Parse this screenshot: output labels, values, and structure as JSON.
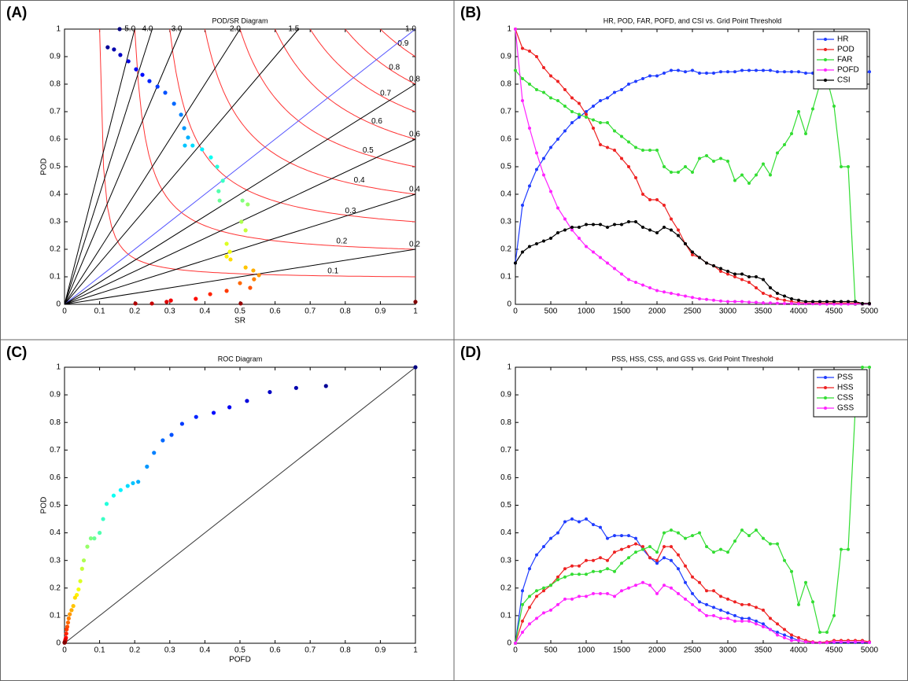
{
  "chart_data": [
    {
      "type": "scatter",
      "panel_label": "(A)",
      "title": "POD/SR Diagram",
      "xlabel": "SR",
      "ylabel": "POD",
      "xlim": [
        0,
        1
      ],
      "ylim": [
        0,
        1
      ],
      "xticks": [
        0,
        0.1,
        0.2,
        0.3,
        0.4,
        0.5,
        0.6,
        0.7,
        0.8,
        0.9,
        1
      ],
      "yticks": [
        0,
        0.1,
        0.2,
        0.3,
        0.4,
        0.5,
        0.6,
        0.7,
        0.8,
        0.9,
        1
      ],
      "colormap": "jet",
      "x": [
        0.157,
        0.123,
        0.141,
        0.159,
        0.182,
        0.204,
        0.222,
        0.242,
        0.265,
        0.287,
        0.312,
        0.332,
        0.341,
        0.352,
        0.343,
        0.365,
        0.392,
        0.417,
        0.435,
        0.451,
        0.439,
        0.442,
        0.507,
        0.522,
        0.504,
        0.516,
        0.462,
        0.471,
        0.462,
        0.473,
        0.516,
        0.538,
        0.554,
        0.54,
        0.5,
        0.529,
        0.462,
        0.415,
        0.374,
        0.303,
        0.291,
        0.249,
        0.202,
        0.502,
        1.0
      ],
      "values": [
        1.0,
        0.934,
        0.926,
        0.906,
        0.883,
        0.854,
        0.834,
        0.811,
        0.791,
        0.769,
        0.729,
        0.689,
        0.64,
        0.606,
        0.577,
        0.577,
        0.563,
        0.534,
        0.5,
        0.449,
        0.411,
        0.377,
        0.377,
        0.363,
        0.3,
        0.269,
        0.22,
        0.191,
        0.174,
        0.163,
        0.134,
        0.123,
        0.106,
        0.091,
        0.077,
        0.06,
        0.049,
        0.037,
        0.02,
        0.014,
        0.009,
        0.003,
        0.003,
        0.003,
        0.009
      ],
      "bias_lines": [
        {
          "value": 5,
          "label": "5.0"
        },
        {
          "value": 4,
          "label": "4.0"
        },
        {
          "value": 3,
          "label": "3.0"
        },
        {
          "value": 2,
          "label": "2.0"
        },
        1.5,
        {
          "value": 1,
          "label": "1.0"
        },
        0.8,
        0.6,
        0.4,
        0.2
      ],
      "bias_color": "#000000",
      "unit_bias_color": "#5555ff",
      "csi_lines": [
        0.1,
        0.2,
        0.3,
        0.4,
        0.5,
        0.6,
        0.7,
        0.8,
        0.9
      ],
      "csi_color": "#ff3333"
    },
    {
      "type": "line",
      "panel_label": "(B)",
      "title": "HR, POD, FAR, POFD, and CSI vs. Grid Point Threshold",
      "xlim": [
        0,
        5000
      ],
      "ylim": [
        0,
        1
      ],
      "xticks": [
        0,
        500,
        1000,
        1500,
        2000,
        2500,
        3000,
        3500,
        4000,
        4500,
        5000
      ],
      "yticks": [
        0,
        0.1,
        0.2,
        0.3,
        0.4,
        0.5,
        0.6,
        0.7,
        0.8,
        0.9,
        1
      ],
      "legend": "upper right",
      "x": [
        0,
        100,
        200,
        300,
        400,
        500,
        600,
        700,
        800,
        900,
        1000,
        1100,
        1200,
        1300,
        1400,
        1500,
        1600,
        1700,
        1800,
        1900,
        2000,
        2100,
        2200,
        2300,
        2400,
        2500,
        2600,
        2700,
        2800,
        2900,
        3000,
        3100,
        3200,
        3300,
        3400,
        3500,
        3600,
        3700,
        3800,
        3900,
        4000,
        4100,
        4200,
        4300,
        4400,
        4500,
        4600,
        4700,
        4800,
        4900,
        5000
      ],
      "series": [
        {
          "name": "HR",
          "color": "#1f3cff",
          "values": [
            0.15,
            0.36,
            0.43,
            0.49,
            0.53,
            0.57,
            0.6,
            0.63,
            0.66,
            0.68,
            0.7,
            0.72,
            0.74,
            0.75,
            0.77,
            0.78,
            0.8,
            0.81,
            0.82,
            0.83,
            0.83,
            0.84,
            0.85,
            0.85,
            0.845,
            0.85,
            0.84,
            0.84,
            0.84,
            0.845,
            0.845,
            0.845,
            0.85,
            0.85,
            0.85,
            0.85,
            0.85,
            0.845,
            0.845,
            0.845,
            0.845,
            0.84,
            0.84,
            0.84,
            0.84,
            0.84,
            0.84,
            0.84,
            0.84,
            0.84,
            0.845
          ]
        },
        {
          "name": "POD",
          "color": "#ee2222",
          "values": [
            1.0,
            0.93,
            0.92,
            0.9,
            0.86,
            0.83,
            0.81,
            0.78,
            0.75,
            0.73,
            0.69,
            0.64,
            0.58,
            0.57,
            0.56,
            0.53,
            0.5,
            0.46,
            0.4,
            0.38,
            0.38,
            0.36,
            0.31,
            0.27,
            0.22,
            0.18,
            0.17,
            0.15,
            0.14,
            0.12,
            0.11,
            0.1,
            0.09,
            0.08,
            0.06,
            0.04,
            0.03,
            0.02,
            0.015,
            0.01,
            0.007,
            0.005,
            0.005,
            0.005,
            0.005,
            0.005,
            0.005,
            0.005,
            0.005,
            0.003,
            0.003
          ]
        },
        {
          "name": "FAR",
          "color": "#33dd33",
          "values": [
            0.85,
            0.82,
            0.8,
            0.78,
            0.77,
            0.75,
            0.74,
            0.72,
            0.7,
            0.69,
            0.68,
            0.67,
            0.66,
            0.66,
            0.63,
            0.61,
            0.59,
            0.57,
            0.56,
            0.56,
            0.56,
            0.5,
            0.48,
            0.48,
            0.5,
            0.48,
            0.53,
            0.54,
            0.52,
            0.53,
            0.52,
            0.45,
            0.47,
            0.44,
            0.47,
            0.51,
            0.47,
            0.55,
            0.58,
            0.62,
            0.7,
            0.62,
            0.71,
            0.8,
            0.82,
            0.72,
            0.5,
            0.5,
            0.0,
            0.0,
            0.0
          ]
        },
        {
          "name": "POFD",
          "color": "#ff22ff",
          "values": [
            1.0,
            0.74,
            0.64,
            0.55,
            0.47,
            0.41,
            0.35,
            0.31,
            0.27,
            0.24,
            0.21,
            0.19,
            0.17,
            0.15,
            0.13,
            0.11,
            0.09,
            0.08,
            0.07,
            0.06,
            0.05,
            0.045,
            0.04,
            0.035,
            0.03,
            0.025,
            0.02,
            0.018,
            0.015,
            0.012,
            0.01,
            0.01,
            0.01,
            0.008,
            0.007,
            0.005,
            0.005,
            0.004,
            0.003,
            0.003,
            0.002,
            0.002,
            0.002,
            0.001,
            0.001,
            0.001,
            0.001,
            0.001,
            0.001,
            0.001,
            0.001
          ]
        },
        {
          "name": "CSI",
          "color": "#000000",
          "values": [
            0.15,
            0.19,
            0.21,
            0.22,
            0.23,
            0.24,
            0.26,
            0.27,
            0.28,
            0.28,
            0.29,
            0.29,
            0.29,
            0.28,
            0.29,
            0.29,
            0.3,
            0.3,
            0.28,
            0.27,
            0.26,
            0.28,
            0.27,
            0.25,
            0.22,
            0.19,
            0.17,
            0.15,
            0.14,
            0.13,
            0.12,
            0.11,
            0.11,
            0.1,
            0.1,
            0.09,
            0.06,
            0.04,
            0.03,
            0.02,
            0.015,
            0.01,
            0.01,
            0.01,
            0.01,
            0.01,
            0.01,
            0.01,
            0.01,
            0.003,
            0.003
          ]
        }
      ]
    },
    {
      "type": "scatter",
      "panel_label": "(C)",
      "title": "ROC Diagram",
      "xlabel": "POFD",
      "ylabel": "POD",
      "xlim": [
        0,
        1
      ],
      "ylim": [
        0,
        1
      ],
      "xticks": [
        0,
        0.1,
        0.2,
        0.3,
        0.4,
        0.5,
        0.6,
        0.7,
        0.8,
        0.9,
        1
      ],
      "yticks": [
        0,
        0.1,
        0.2,
        0.3,
        0.4,
        0.5,
        0.6,
        0.7,
        0.8,
        0.9,
        1
      ],
      "colormap": "jet",
      "diagonal": true,
      "x": [
        1,
        0.745,
        0.66,
        0.585,
        0.52,
        0.47,
        0.425,
        0.375,
        0.335,
        0.305,
        0.28,
        0.255,
        0.235,
        0.21,
        0.195,
        0.18,
        0.16,
        0.14,
        0.12,
        0.11,
        0.1,
        0.085,
        0.075,
        0.065,
        0.055,
        0.05,
        0.045,
        0.04,
        0.035,
        0.03,
        0.025,
        0.02,
        0.015,
        0.012,
        0.01,
        0.008,
        0.006,
        0.005,
        0.004,
        0.003,
        0.002,
        0.001,
        0.001,
        0,
        0
      ],
      "values": [
        1,
        0.932,
        0.925,
        0.91,
        0.878,
        0.855,
        0.835,
        0.82,
        0.795,
        0.755,
        0.735,
        0.69,
        0.64,
        0.585,
        0.58,
        0.57,
        0.555,
        0.535,
        0.505,
        0.45,
        0.4,
        0.38,
        0.38,
        0.35,
        0.3,
        0.27,
        0.225,
        0.195,
        0.175,
        0.165,
        0.135,
        0.12,
        0.105,
        0.09,
        0.075,
        0.06,
        0.05,
        0.035,
        0.02,
        0.015,
        0.01,
        0.005,
        0.003,
        0.003,
        0.002
      ]
    },
    {
      "type": "line",
      "panel_label": "(D)",
      "title": "PSS, HSS, CSS, and GSS vs. Grid Point Threshold",
      "xlim": [
        0,
        5000
      ],
      "ylim": [
        0,
        1
      ],
      "xticks": [
        0,
        500,
        1000,
        1500,
        2000,
        2500,
        3000,
        3500,
        4000,
        4500,
        5000
      ],
      "yticks": [
        0,
        0.1,
        0.2,
        0.3,
        0.4,
        0.5,
        0.6,
        0.7,
        0.8,
        0.9,
        1
      ],
      "legend": "upper right",
      "x": [
        0,
        100,
        200,
        300,
        400,
        500,
        600,
        700,
        800,
        900,
        1000,
        1100,
        1200,
        1300,
        1400,
        1500,
        1600,
        1700,
        1800,
        1900,
        2000,
        2100,
        2200,
        2300,
        2400,
        2500,
        2600,
        2700,
        2800,
        2900,
        3000,
        3100,
        3200,
        3300,
        3400,
        3500,
        3600,
        3700,
        3800,
        3900,
        4000,
        4100,
        4200,
        4300,
        4400,
        4500,
        4600,
        4700,
        4800,
        4900,
        5000
      ],
      "series": [
        {
          "name": "PSS",
          "color": "#1f3cff",
          "values": [
            0.0,
            0.19,
            0.27,
            0.32,
            0.35,
            0.38,
            0.4,
            0.44,
            0.45,
            0.44,
            0.45,
            0.43,
            0.42,
            0.38,
            0.39,
            0.39,
            0.39,
            0.38,
            0.34,
            0.31,
            0.29,
            0.31,
            0.3,
            0.27,
            0.22,
            0.18,
            0.15,
            0.14,
            0.13,
            0.12,
            0.11,
            0.1,
            0.09,
            0.09,
            0.08,
            0.07,
            0.05,
            0.04,
            0.03,
            0.02,
            0.01,
            0.005,
            0.003,
            0.003,
            0.003,
            0.003,
            0.003,
            0.003,
            0.003,
            0.003,
            0.003
          ]
        },
        {
          "name": "HSS",
          "color": "#ee2222",
          "values": [
            0.0,
            0.08,
            0.13,
            0.17,
            0.19,
            0.21,
            0.24,
            0.27,
            0.28,
            0.28,
            0.3,
            0.3,
            0.31,
            0.3,
            0.33,
            0.34,
            0.35,
            0.36,
            0.35,
            0.31,
            0.3,
            0.35,
            0.35,
            0.32,
            0.28,
            0.24,
            0.22,
            0.19,
            0.19,
            0.17,
            0.16,
            0.15,
            0.14,
            0.14,
            0.13,
            0.12,
            0.09,
            0.07,
            0.05,
            0.03,
            0.02,
            0.01,
            0.005,
            0.003,
            0.005,
            0.01,
            0.01,
            0.01,
            0.01,
            0.01,
            0.005
          ]
        },
        {
          "name": "CSS",
          "color": "#33dd33",
          "values": [
            0.0,
            0.14,
            0.17,
            0.19,
            0.2,
            0.21,
            0.23,
            0.24,
            0.25,
            0.25,
            0.25,
            0.26,
            0.26,
            0.27,
            0.26,
            0.29,
            0.31,
            0.33,
            0.34,
            0.35,
            0.33,
            0.4,
            0.41,
            0.4,
            0.38,
            0.39,
            0.4,
            0.35,
            0.33,
            0.34,
            0.33,
            0.37,
            0.41,
            0.39,
            0.41,
            0.38,
            0.36,
            0.36,
            0.3,
            0.26,
            0.14,
            0.22,
            0.15,
            0.04,
            0.04,
            0.1,
            0.34,
            0.34,
            0.85,
            1.0,
            1.0
          ]
        },
        {
          "name": "GSS",
          "color": "#ff22ff",
          "values": [
            0.0,
            0.04,
            0.07,
            0.09,
            0.11,
            0.12,
            0.14,
            0.16,
            0.16,
            0.17,
            0.17,
            0.18,
            0.18,
            0.18,
            0.17,
            0.19,
            0.2,
            0.21,
            0.22,
            0.21,
            0.18,
            0.21,
            0.2,
            0.18,
            0.16,
            0.14,
            0.12,
            0.1,
            0.1,
            0.09,
            0.09,
            0.08,
            0.08,
            0.08,
            0.07,
            0.06,
            0.05,
            0.03,
            0.02,
            0.01,
            0.01,
            0.005,
            0.003,
            0.002,
            0.002,
            0.005,
            0.005,
            0.005,
            0.005,
            0.005,
            0.003
          ]
        }
      ]
    }
  ]
}
